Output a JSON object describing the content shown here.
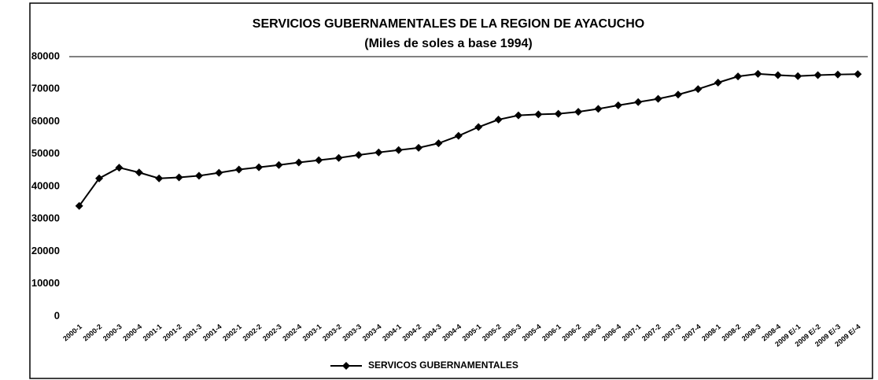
{
  "chart_data": {
    "type": "line",
    "title": "SERVICIOS GUBERNAMENTALES DE LA REGION DE AYACUCHO",
    "subtitle": "(Miles de soles a base 1994)",
    "categories": [
      "2000-1",
      "2000-2",
      "2000-3",
      "2000-4",
      "2001-1",
      "2001-2",
      "2001-3",
      "2001-4",
      "2002-1",
      "2002-2",
      "2002-3",
      "2002-4",
      "2003-1",
      "2003-2",
      "2003-3",
      "2003-4",
      "2004-1",
      "2004-2",
      "2004-3",
      "2004-4",
      "2005-1",
      "2005-2",
      "2005-3",
      "2005-4",
      "2006-1",
      "2006-2",
      "2006-3",
      "2006-4",
      "2007-1",
      "2007-2",
      "2007-3",
      "2007-4",
      "2008-1",
      "2008-2",
      "2008-3",
      "2008-4",
      "2009 E/-1",
      "2009 E/-2",
      "2009 E/-3",
      "2009 E/-4"
    ],
    "series": [
      {
        "name": "SERVICOS GUBERNAMENTALES",
        "color": "#000000",
        "values": [
          34000,
          42500,
          45800,
          44300,
          42500,
          42800,
          43300,
          44200,
          45200,
          45900,
          46600,
          47400,
          48100,
          48800,
          49700,
          50500,
          51200,
          51900,
          53300,
          55600,
          58300,
          60600,
          61900,
          62200,
          62400,
          63000,
          63900,
          65000,
          66000,
          67000,
          68300,
          70000,
          72000,
          73900,
          74700,
          74300,
          74000,
          74300,
          74500,
          74600
        ]
      }
    ],
    "ylim": [
      0,
      80000
    ],
    "yticks": [
      0,
      10000,
      20000,
      30000,
      40000,
      50000,
      60000,
      70000,
      80000
    ],
    "grid": false,
    "legend": "bottom"
  }
}
